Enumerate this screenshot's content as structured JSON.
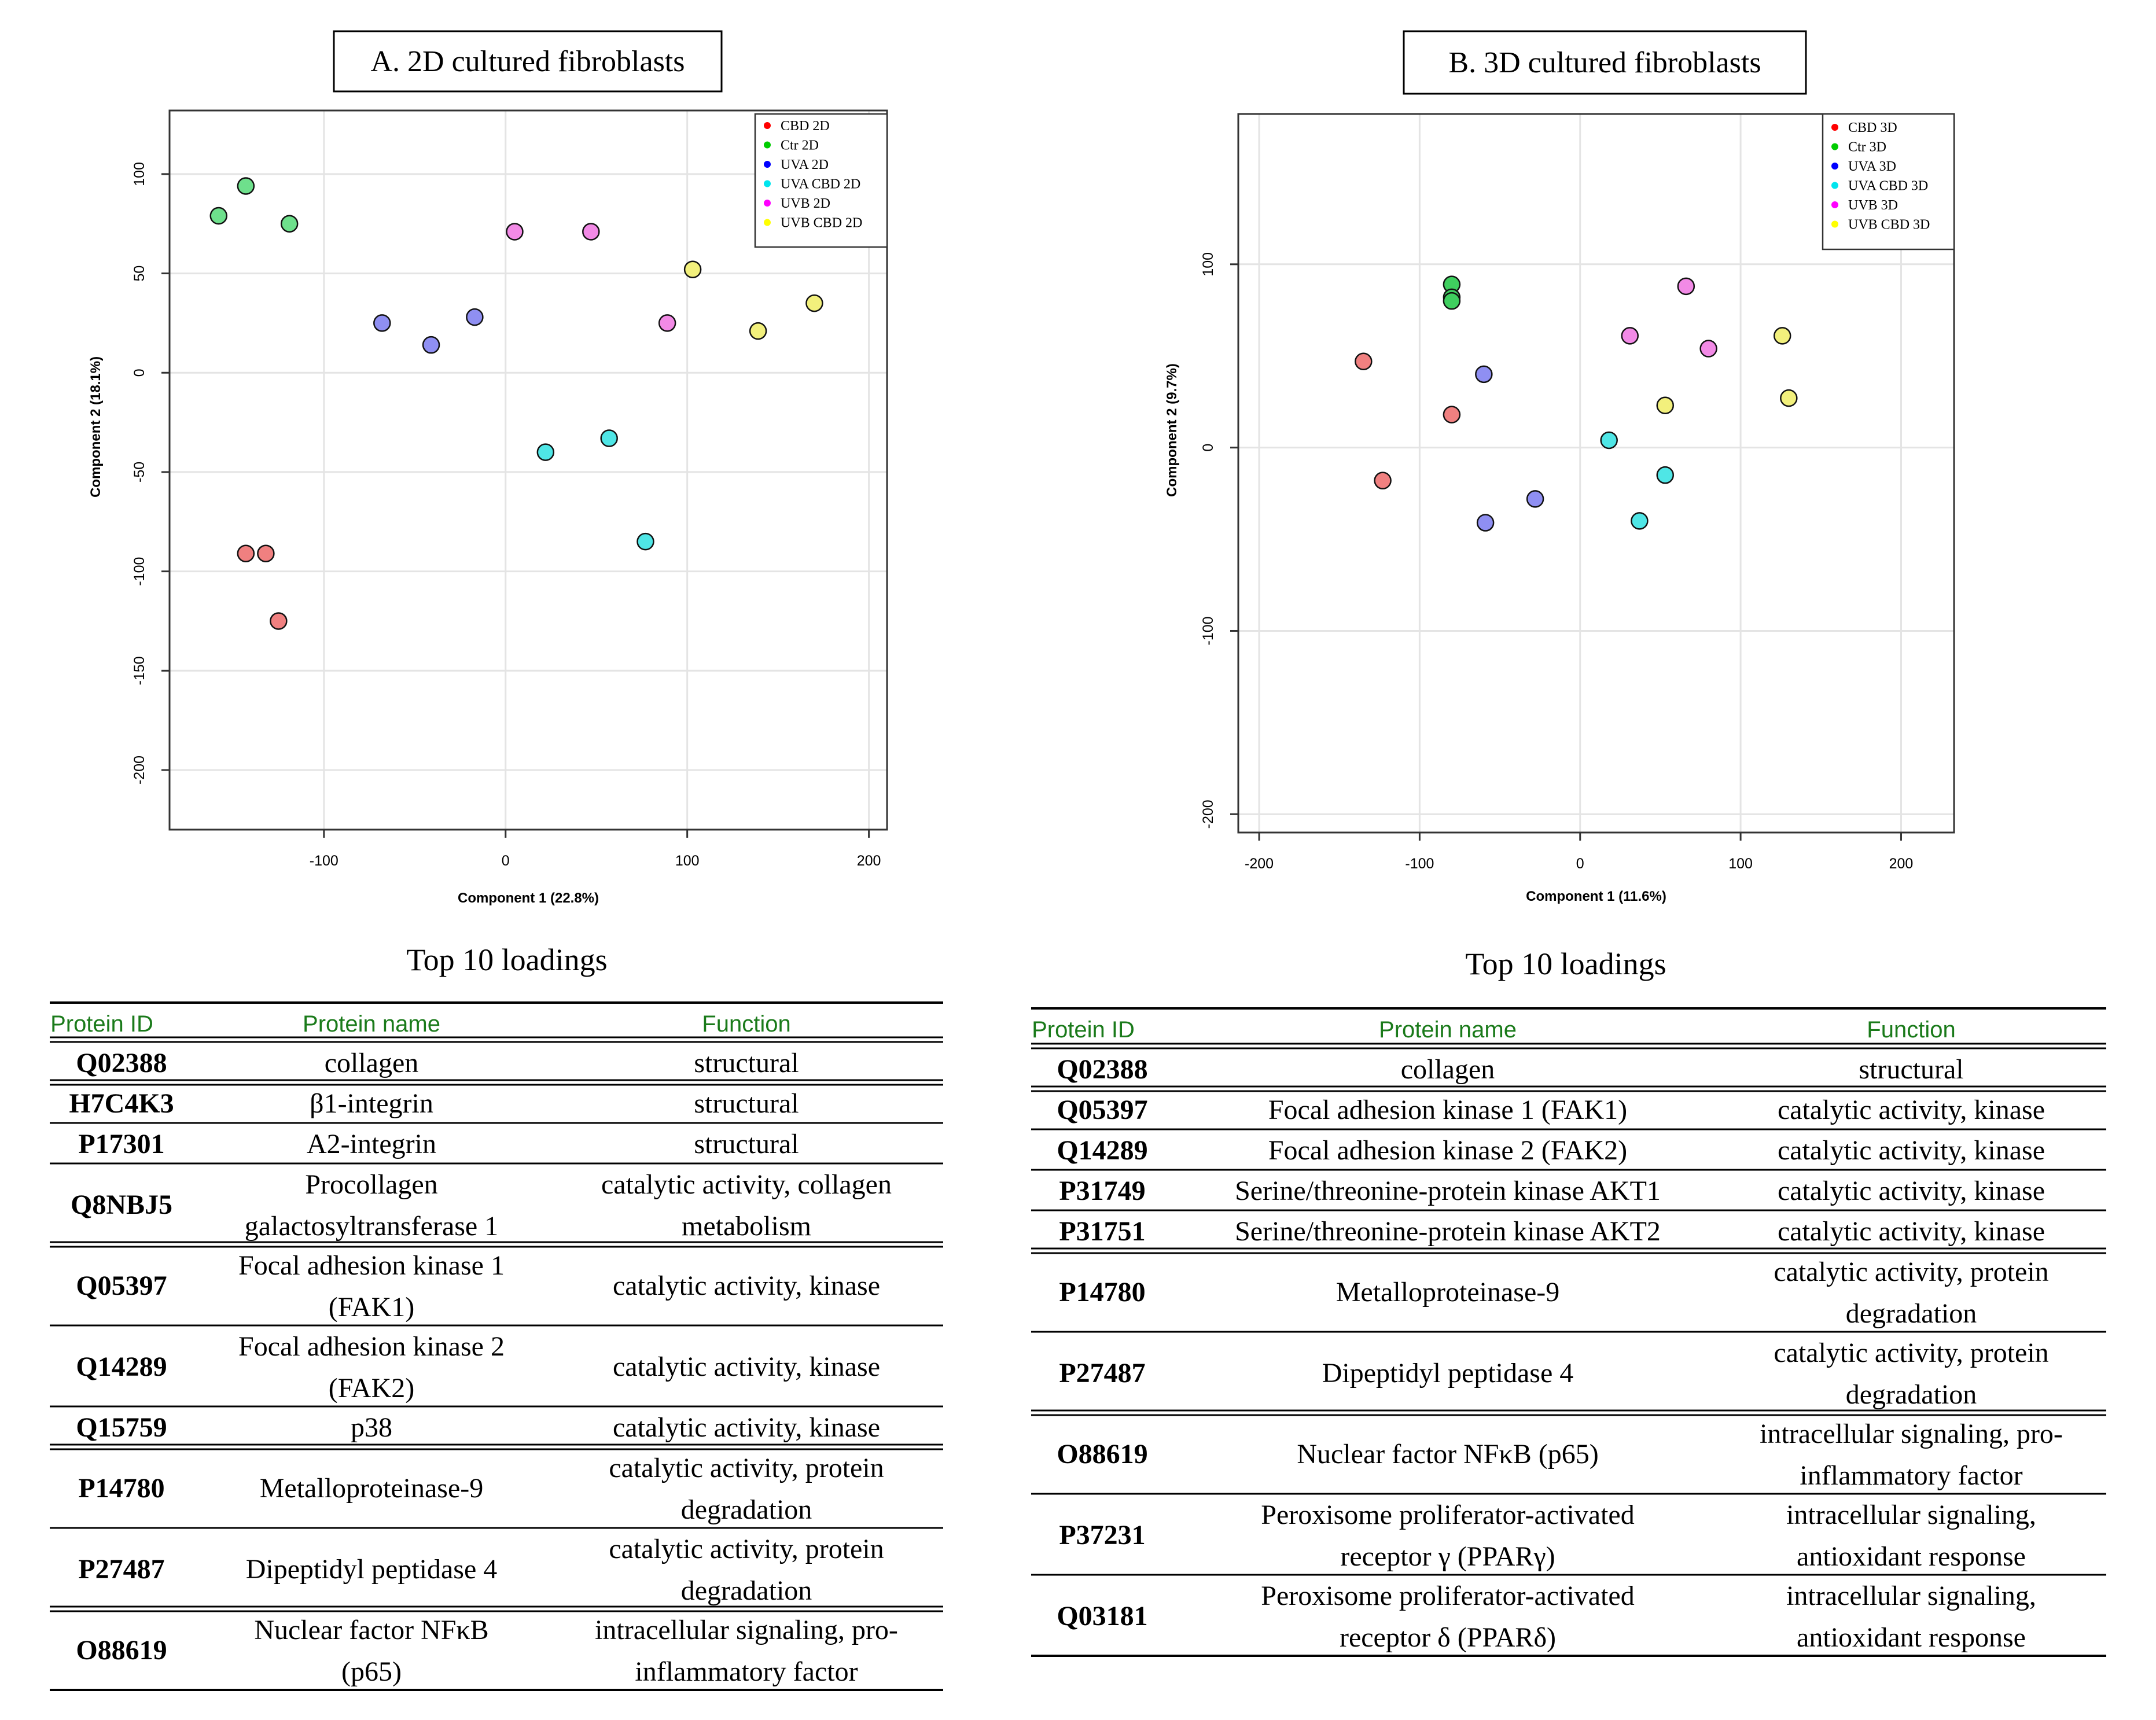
{
  "chart_data": [
    {
      "type": "scatter",
      "title": "A. 2D cultured fibroblasts",
      "xlabel": "Component 1 (22.8%)",
      "ylabel": "Component 2 (18.1%)",
      "xlim": [
        -185,
        210
      ],
      "ylim": [
        -230,
        132
      ],
      "xticks": [
        -100,
        0,
        100,
        200
      ],
      "yticks": [
        100,
        50,
        0,
        -50,
        -100,
        -150,
        -200
      ],
      "grid": true,
      "legend_position": "top-right",
      "series": [
        {
          "name": "CBD 2D",
          "color": "#ff0000",
          "fill": "#f08080",
          "points": [
            [
              -143,
              -91
            ],
            [
              -132,
              -91
            ],
            [
              -125,
              -125
            ]
          ]
        },
        {
          "name": "Ctr 2D",
          "color": "#00cc00",
          "fill": "#6ee08c",
          "points": [
            [
              -158,
              79
            ],
            [
              -143,
              94
            ],
            [
              -119,
              75
            ]
          ]
        },
        {
          "name": "UVA 2D",
          "color": "#0000ff",
          "fill": "#8f8ff2",
          "points": [
            [
              -68,
              25
            ],
            [
              -41,
              14
            ],
            [
              -17,
              28
            ]
          ]
        },
        {
          "name": "UVA CBD 2D",
          "color": "#00e5ee",
          "fill": "#4fe6e6",
          "points": [
            [
              22,
              -40
            ],
            [
              57,
              -33
            ],
            [
              77,
              -85
            ]
          ]
        },
        {
          "name": "UVB 2D",
          "color": "#ff00ff",
          "fill": "#f28ae6",
          "points": [
            [
              5,
              71
            ],
            [
              47,
              71
            ],
            [
              89,
              25
            ]
          ]
        },
        {
          "name": "UVB CBD 2D",
          "color": "#ffff00",
          "fill": "#f2f07c",
          "points": [
            [
              103,
              52
            ],
            [
              139,
              21
            ],
            [
              170,
              35
            ]
          ]
        }
      ]
    },
    {
      "type": "scatter",
      "title": "B. 3D cultured fibroblasts",
      "xlabel": "Component 1 (11.6%)",
      "ylabel": "Component 2 (9.7%)",
      "xlim": [
        -213,
        233
      ],
      "ylim": [
        -210,
        182
      ],
      "xticks": [
        -200,
        -100,
        0,
        100,
        200
      ],
      "yticks": [
        100,
        0,
        -100,
        -200
      ],
      "grid": true,
      "legend_position": "top-right",
      "series": [
        {
          "name": "CBD 3D",
          "color": "#ff0000",
          "fill": "#f08080",
          "points": [
            [
              -135,
              47
            ],
            [
              -123,
              -18
            ],
            [
              -80,
              18
            ]
          ]
        },
        {
          "name": "Ctr 3D",
          "color": "#00cc00",
          "fill": "#3fcf5f",
          "points": [
            [
              -80,
              89
            ],
            [
              -80,
              82
            ],
            [
              -80,
              80
            ]
          ]
        },
        {
          "name": "UVA 3D",
          "color": "#0000ff",
          "fill": "#8f8ff2",
          "points": [
            [
              -60,
              40
            ],
            [
              -59,
              -41
            ],
            [
              -28,
              -28
            ]
          ]
        },
        {
          "name": "UVA CBD 3D",
          "color": "#00e5ee",
          "fill": "#4fe6e6",
          "points": [
            [
              18,
              4
            ],
            [
              37,
              -40
            ],
            [
              53,
              -15
            ]
          ]
        },
        {
          "name": "UVB 3D",
          "color": "#ff00ff",
          "fill": "#f28ae6",
          "points": [
            [
              31,
              61
            ],
            [
              66,
              88
            ],
            [
              80,
              54
            ]
          ]
        },
        {
          "name": "UVB CBD 3D",
          "color": "#ffff00",
          "fill": "#f2f07c",
          "points": [
            [
              53,
              23
            ],
            [
              126,
              61
            ],
            [
              130,
              27
            ]
          ]
        }
      ]
    }
  ],
  "tables": {
    "left": {
      "title": "Top 10 loadings",
      "headers": [
        "Protein ID",
        "Protein name",
        "Function"
      ],
      "rows": [
        {
          "id": "Q02388",
          "name": [
            "collagen"
          ],
          "func": [
            "structural"
          ],
          "double": true
        },
        {
          "id": "H7C4K3",
          "name": [
            "β1-integrin"
          ],
          "func": [
            "structural"
          ],
          "double": false
        },
        {
          "id": "P17301",
          "name": [
            "A2-integrin"
          ],
          "func": [
            "structural"
          ],
          "double": false
        },
        {
          "id": "Q8NBJ5",
          "name": [
            "Procollagen",
            "galactosyltransferase  1"
          ],
          "func": [
            "catalytic activity, collagen",
            "metabolism"
          ],
          "double": true
        },
        {
          "id": "Q05397",
          "name": [
            "Focal adhesion kinase  1",
            "(FAK1)"
          ],
          "func": [
            "catalytic activity, kinase"
          ],
          "double": false
        },
        {
          "id": "Q14289",
          "name": [
            "Focal adhesion kinase  2",
            "(FAK2)"
          ],
          "func": [
            "catalytic activity, kinase"
          ],
          "double": false
        },
        {
          "id": "Q15759",
          "name": [
            "p38"
          ],
          "func": [
            "catalytic activity, kinase"
          ],
          "double": true
        },
        {
          "id": "P14780",
          "name": [
            "Metalloproteinase-9"
          ],
          "func": [
            "catalytic activity, protein",
            "degradation"
          ],
          "double": false
        },
        {
          "id": "P27487",
          "name": [
            "Dipeptidyl peptidase  4"
          ],
          "func": [
            "catalytic activity, protein",
            "degradation"
          ],
          "double": true
        },
        {
          "id": "O88619",
          "name": [
            "Nuclear factor NFκB",
            "(p65)"
          ],
          "func": [
            "intracellular signaling, pro-",
            "inflammatory factor"
          ],
          "double": false
        }
      ]
    },
    "right": {
      "title": "Top 10 loadings",
      "headers": [
        "Protein ID",
        "Protein name",
        "Function"
      ],
      "rows": [
        {
          "id": "Q02388",
          "name": [
            "collagen"
          ],
          "func": [
            "structural"
          ],
          "double": true
        },
        {
          "id": "Q05397",
          "name": [
            "Focal adhesion kinase  1 (FAK1)"
          ],
          "func": [
            "catalytic activity, kinase"
          ],
          "double": false
        },
        {
          "id": "Q14289",
          "name": [
            "Focal adhesion kinase  2 (FAK2)"
          ],
          "func": [
            "catalytic activity, kinase"
          ],
          "double": false
        },
        {
          "id": "P31749",
          "name": [
            "Serine/threonine-protein kinase AKT1"
          ],
          "func": [
            "catalytic activity, kinase"
          ],
          "double": false
        },
        {
          "id": "P31751",
          "name": [
            "Serine/threonine-protein kinase AKT2"
          ],
          "func": [
            "catalytic activity, kinase"
          ],
          "double": true
        },
        {
          "id": "P14780",
          "name": [
            "Metalloproteinase-9"
          ],
          "func": [
            "catalytic activity, protein",
            "degradation"
          ],
          "double": false
        },
        {
          "id": "P27487",
          "name": [
            "Dipeptidyl peptidase  4"
          ],
          "func": [
            "catalytic activity, protein",
            "degradation"
          ],
          "double": true
        },
        {
          "id": "O88619",
          "name": [
            "Nuclear factor NFκB (p65)"
          ],
          "func": [
            "intracellular signaling, pro-",
            "inflammatory factor"
          ],
          "double": false
        },
        {
          "id": "P37231",
          "name": [
            "Peroxisome proliferator-activated",
            "receptor γ (PPARγ)"
          ],
          "func": [
            "intracellular signaling,",
            "antioxidant response"
          ],
          "double": false
        },
        {
          "id": "Q03181",
          "name": [
            "Peroxisome proliferator-activated",
            "receptor δ (PPARδ)"
          ],
          "func": [
            "intracellular signaling,",
            "antioxidant response"
          ],
          "double": false
        }
      ]
    }
  },
  "colors": {
    "header_text": "#1a7a1a",
    "gridline": "#e4e4e4",
    "text": "#000000"
  }
}
